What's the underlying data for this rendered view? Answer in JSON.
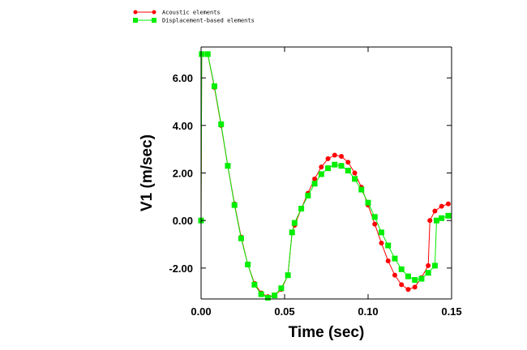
{
  "chart_data": {
    "type": "line",
    "title": "",
    "xlabel": "Time (sec)",
    "ylabel": "V1 (m/sec)",
    "xlim": [
      0.0,
      0.15
    ],
    "ylim": [
      -3.3,
      7.3
    ],
    "x_ticks": [
      0.0,
      0.05,
      0.1,
      0.15
    ],
    "x_tick_labels": [
      "0.00",
      "0.05",
      "0.10",
      "0.15"
    ],
    "y_ticks": [
      -2.0,
      0.0,
      2.0,
      4.0,
      6.0
    ],
    "y_tick_labels": [
      "-2.00",
      "0.00",
      "2.00",
      "4.00",
      "6.00"
    ],
    "grid": false,
    "legend_position": "top-left, above the plot",
    "series": [
      {
        "name": "Acoustic elements",
        "color": "#ff0000",
        "marker": "circle",
        "x": [
          0.0,
          0.0004,
          0.004,
          0.008,
          0.012,
          0.016,
          0.02,
          0.024,
          0.028,
          0.032,
          0.036,
          0.04,
          0.044,
          0.048,
          0.052,
          0.0545,
          0.056,
          0.06,
          0.064,
          0.068,
          0.072,
          0.076,
          0.08,
          0.084,
          0.088,
          0.092,
          0.096,
          0.1,
          0.104,
          0.108,
          0.112,
          0.116,
          0.12,
          0.124,
          0.128,
          0.132,
          0.136,
          0.137,
          0.14,
          0.144,
          0.148
        ],
        "y": [
          0.0,
          7.0,
          7.0,
          5.6,
          4.0,
          2.3,
          0.7,
          -0.7,
          -1.85,
          -2.65,
          -3.05,
          -3.2,
          -3.15,
          -2.9,
          -2.3,
          -0.5,
          -0.2,
          0.5,
          1.15,
          1.75,
          2.25,
          2.6,
          2.75,
          2.7,
          2.45,
          2.0,
          1.4,
          0.65,
          -0.15,
          -0.95,
          -1.7,
          -2.3,
          -2.7,
          -2.9,
          -2.8,
          -2.4,
          -1.9,
          0.0,
          0.4,
          0.6,
          0.7
        ]
      },
      {
        "name": "Displacement-based elements",
        "color": "#00ee00",
        "marker": "square",
        "x": [
          0.0,
          0.0004,
          0.004,
          0.008,
          0.012,
          0.016,
          0.02,
          0.024,
          0.028,
          0.032,
          0.036,
          0.04,
          0.044,
          0.048,
          0.052,
          0.0545,
          0.056,
          0.06,
          0.064,
          0.068,
          0.072,
          0.076,
          0.08,
          0.084,
          0.088,
          0.092,
          0.096,
          0.1,
          0.104,
          0.108,
          0.112,
          0.116,
          0.12,
          0.124,
          0.128,
          0.132,
          0.136,
          0.14,
          0.141,
          0.144,
          0.148
        ],
        "y": [
          0.0,
          7.0,
          7.0,
          5.65,
          4.05,
          2.3,
          0.65,
          -0.75,
          -1.85,
          -2.7,
          -3.1,
          -3.25,
          -3.15,
          -2.85,
          -2.3,
          -0.5,
          -0.1,
          0.5,
          1.05,
          1.55,
          1.95,
          2.2,
          2.35,
          2.3,
          2.1,
          1.75,
          1.3,
          0.75,
          0.15,
          -0.5,
          -1.05,
          -1.6,
          -2.05,
          -2.35,
          -2.5,
          -2.45,
          -2.2,
          -1.9,
          0.0,
          0.1,
          0.2
        ]
      }
    ]
  }
}
